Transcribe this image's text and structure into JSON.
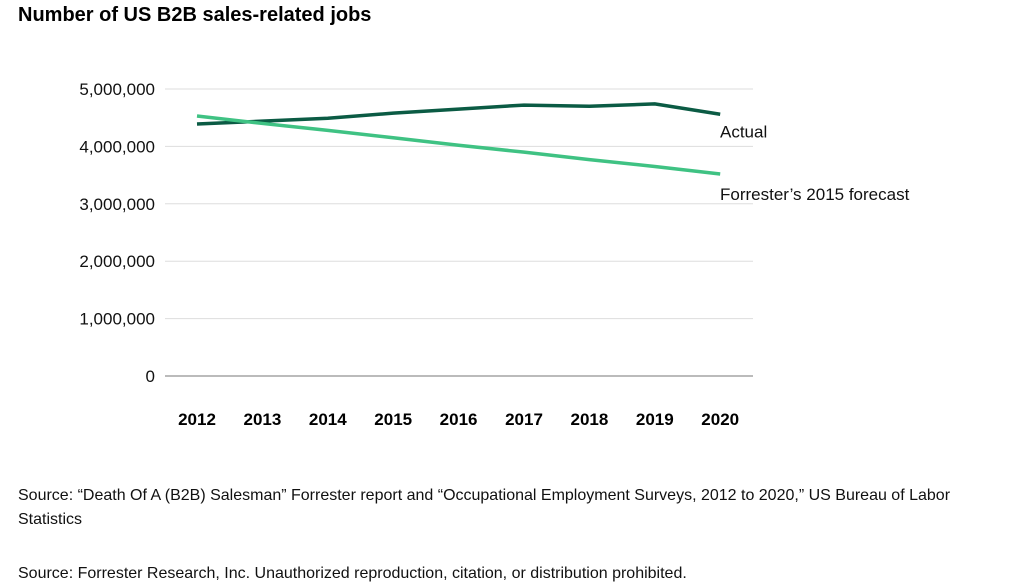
{
  "chart_data": {
    "type": "line",
    "title": "Number of US B2B sales-related jobs",
    "categories": [
      "2012",
      "2013",
      "2014",
      "2015",
      "2016",
      "2017",
      "2018",
      "2019",
      "2020"
    ],
    "ylim": [
      0,
      5000000
    ],
    "yticks": [
      "0",
      "1,000,000",
      "2,000,000",
      "3,000,000",
      "4,000,000",
      "5,000,000"
    ],
    "grid": true,
    "series": [
      {
        "name": "Actual",
        "color": "#0b5b44",
        "values": [
          4390000,
          4440000,
          4490000,
          4580000,
          4650000,
          4720000,
          4700000,
          4740000,
          4560000
        ]
      },
      {
        "name": "Forrester’s 2015 forecast",
        "color": "#3fc283",
        "values": [
          4530000,
          4400000,
          4280000,
          4150000,
          4020000,
          3900000,
          3770000,
          3650000,
          3520000
        ]
      }
    ]
  },
  "source_note": "Source: “Death Of A (B2B) Salesman” Forrester report and “Occupational Employment Surveys, 2012 to 2020,” US Bureau of Labor Statistics",
  "footer": "Source: Forrester Research, Inc. Unauthorized reproduction, citation, or distribution prohibited."
}
